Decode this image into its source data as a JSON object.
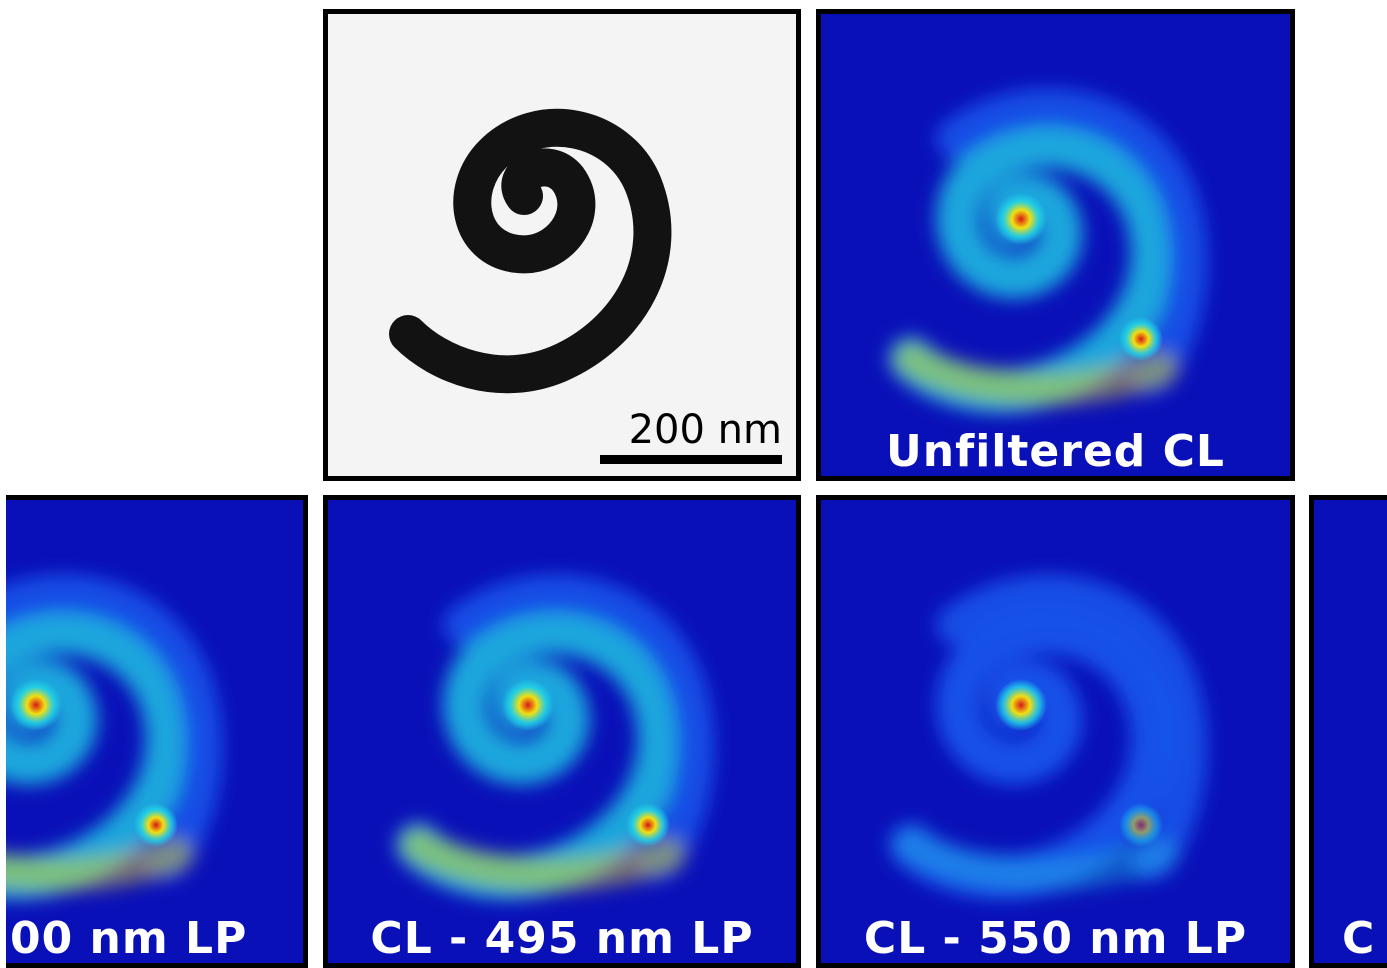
{
  "figure": {
    "tem_panel": {
      "scale_bar_label": "200 nm",
      "colors": {
        "background": "#f4f4f4",
        "spiral": "#111111"
      }
    },
    "cl_panels": [
      {
        "id": "unfiltered",
        "label": "Unfiltered CL"
      },
      {
        "id": "lp400",
        "label": "00 nm LP"
      },
      {
        "id": "lp495",
        "label": "CL - 495 nm LP"
      },
      {
        "id": "lp550",
        "label": "CL - 550 nm LP"
      },
      {
        "id": "partial",
        "label": "C"
      }
    ],
    "colormap": {
      "background": "#0a10b8",
      "low": "#1a5cf0",
      "mid": "#22d8e8",
      "high": "#f2e010",
      "peak": "#d81818"
    }
  }
}
